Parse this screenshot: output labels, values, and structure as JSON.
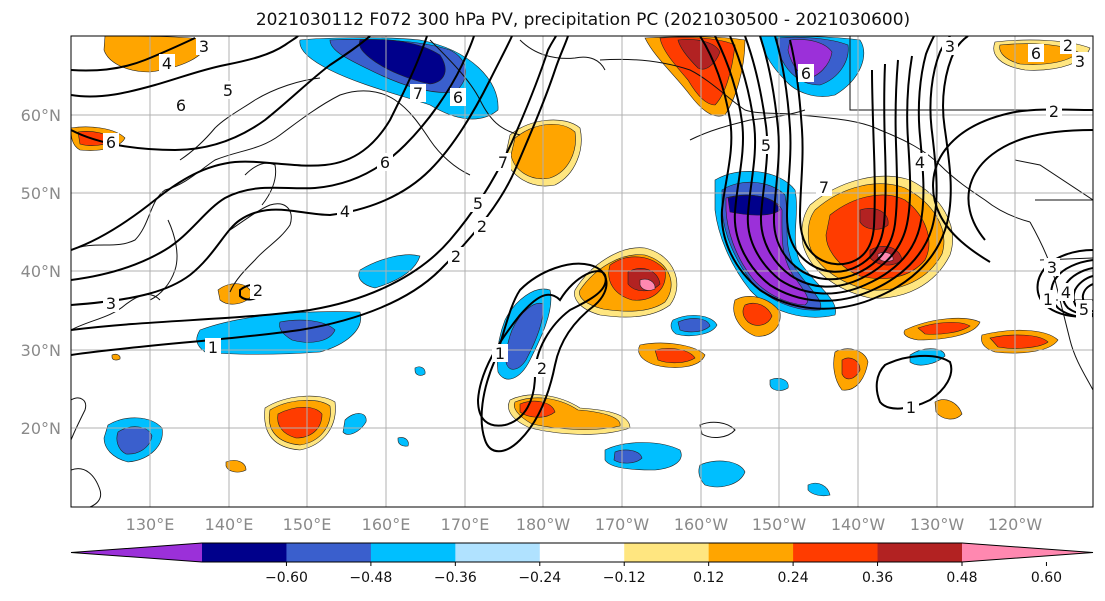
{
  "title": "2021030112 F072 300 hPa PV, precipitation PC (2021030500 - 2021030600)",
  "lat_labels": [
    "60°N",
    "50°N",
    "40°N",
    "30°N",
    "20°N"
  ],
  "lon_labels": [
    "130°E",
    "140°E",
    "150°E",
    "160°E",
    "170°E",
    "180°W",
    "170°W",
    "160°W",
    "150°W",
    "140°W",
    "130°W",
    "120°W"
  ],
  "colorbar": {
    "ticks": [
      "−0.60",
      "−0.48",
      "−0.36",
      "−0.24",
      "−0.12",
      "0.12",
      "0.24",
      "0.36",
      "0.48",
      "0.60"
    ],
    "colors": [
      "#9b30d9",
      "#00008b",
      "#3a5fcd",
      "#00bfff",
      "#b0e2ff",
      "#ffffff",
      "#ffe680",
      "#ffa500",
      "#ff3c00",
      "#b22222",
      "#ff88b0"
    ]
  },
  "contour_labels": [
    "3",
    "4",
    "5",
    "6",
    "6",
    "6",
    "7",
    "2",
    "1",
    "2",
    "3",
    "4",
    "5",
    "6",
    "7",
    "1",
    "2",
    "1",
    "2",
    "3",
    "4",
    "5",
    "6",
    "7",
    "2",
    "3",
    "4",
    "5",
    "6",
    "1",
    "2",
    "3"
  ],
  "colors": {
    "grid": "#b0b0b0",
    "axis_text": "#8a8a8a"
  }
}
